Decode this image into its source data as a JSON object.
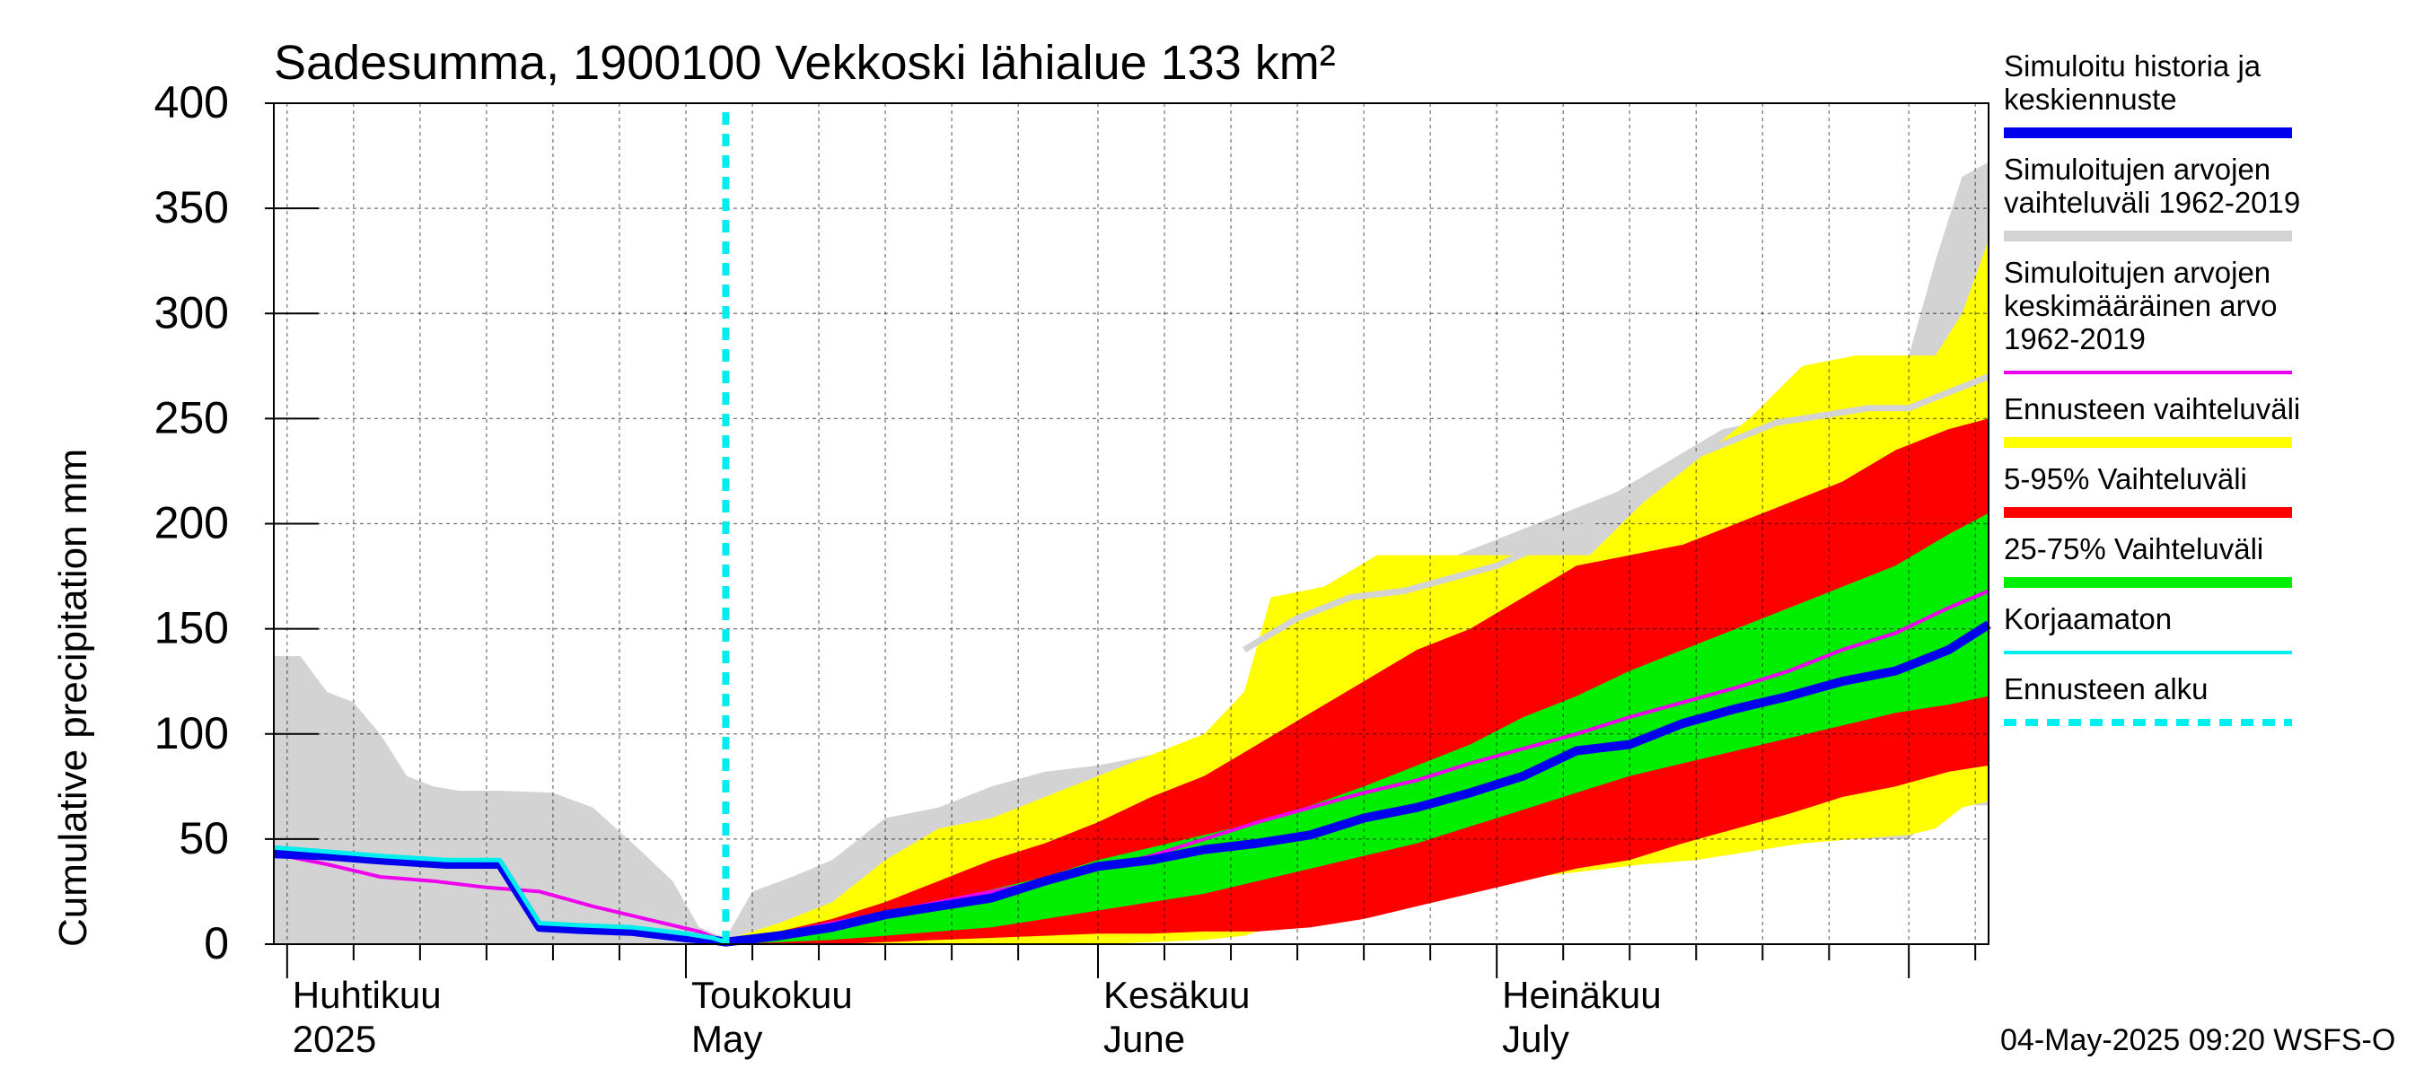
{
  "chart_data": {
    "type": "area",
    "title": "Sadesumma, 1900100 Vekkoski lähialue 133 km²",
    "ylabel": "Cumulative precipitation   mm",
    "ylim": [
      0,
      400
    ],
    "yticks": [
      0,
      50,
      100,
      150,
      200,
      250,
      300,
      350,
      400
    ],
    "ytick_labels": [
      "0",
      "50",
      "100",
      "150",
      "200",
      "250",
      "300",
      "350",
      "400"
    ],
    "xlim": [
      "2025-03-31",
      "2025-08-07"
    ],
    "grid": true,
    "legend_position": "right",
    "forecast_start": "2025-05-04",
    "month_labels": [
      {
        "date": "2025-04-01",
        "fi": "Huhtikuu",
        "en": "2025"
      },
      {
        "date": "2025-05-01",
        "fi": "Toukokuu",
        "en": "May"
      },
      {
        "date": "2025-06-01",
        "fi": "Kesäkuu",
        "en": "June"
      },
      {
        "date": "2025-07-01",
        "fi": "Heinäkuu",
        "en": "July"
      }
    ],
    "month_ticks": [
      "2025-04-01",
      "2025-05-01",
      "2025-06-01",
      "2025-07-01",
      "2025-08-01"
    ],
    "week_ticks": [
      "2025-04-06",
      "2025-04-11",
      "2025-04-16",
      "2025-04-21",
      "2025-04-26",
      "2025-05-06",
      "2025-05-11",
      "2025-05-16",
      "2025-05-21",
      "2025-05-26",
      "2025-06-06",
      "2025-06-11",
      "2025-06-16",
      "2025-06-21",
      "2025-06-26",
      "2025-07-06",
      "2025-07-11",
      "2025-07-16",
      "2025-07-21",
      "2025-07-26",
      "2025-08-06"
    ],
    "series": [
      {
        "name": "Simuloitujen arvojen vaihteluväli 1962-2019",
        "kind": "band",
        "color": "#d3d3d3",
        "x": [
          "2025-03-31",
          "2025-04-02",
          "2025-04-04",
          "2025-04-06",
          "2025-04-08",
          "2025-04-10",
          "2025-04-12",
          "2025-04-14",
          "2025-04-17",
          "2025-04-21",
          "2025-04-24",
          "2025-04-27",
          "2025-04-30",
          "2025-05-02",
          "2025-05-04",
          "2025-05-06",
          "2025-05-09",
          "2025-05-12",
          "2025-05-16",
          "2025-05-20",
          "2025-05-24",
          "2025-05-28",
          "2025-06-01",
          "2025-06-05",
          "2025-06-09",
          "2025-06-12",
          "2025-06-14",
          "2025-06-16",
          "2025-06-20",
          "2025-06-24",
          "2025-06-28",
          "2025-07-02",
          "2025-07-06",
          "2025-07-10",
          "2025-07-14",
          "2025-07-18",
          "2025-07-22",
          "2025-07-26",
          "2025-07-29",
          "2025-08-01",
          "2025-08-03",
          "2025-08-05",
          "2025-08-07"
        ],
        "upper": [
          137,
          137,
          120,
          115,
          100,
          80,
          75,
          73,
          73,
          72,
          65,
          48,
          30,
          8,
          3,
          25,
          32,
          40,
          60,
          65,
          75,
          82,
          85,
          90,
          95,
          100,
          125,
          130,
          160,
          170,
          185,
          195,
          205,
          215,
          230,
          245,
          250,
          255,
          262,
          280,
          325,
          365,
          372
        ],
        "lower": [
          0,
          0,
          0,
          0,
          0,
          0,
          0,
          0,
          0,
          0,
          0,
          0,
          0,
          0,
          0,
          0,
          0,
          0,
          0,
          0,
          0,
          2,
          4,
          4,
          4,
          8,
          10,
          14,
          20,
          25,
          30,
          35,
          38,
          40,
          44,
          46,
          48,
          50,
          50,
          50,
          62,
          66,
          66
        ]
      },
      {
        "name": "Ennusteen vaihteluväli",
        "kind": "band",
        "color": "#ffff00",
        "x": [
          "2025-05-04",
          "2025-05-08",
          "2025-05-12",
          "2025-05-16",
          "2025-05-20",
          "2025-05-24",
          "2025-05-28",
          "2025-06-01",
          "2025-06-05",
          "2025-06-09",
          "2025-06-12",
          "2025-06-14",
          "2025-06-18",
          "2025-06-22",
          "2025-06-26",
          "2025-06-30",
          "2025-07-04",
          "2025-07-08",
          "2025-07-12",
          "2025-07-16",
          "2025-07-20",
          "2025-07-24",
          "2025-07-28",
          "2025-08-01",
          "2025-08-03",
          "2025-08-05",
          "2025-08-07"
        ],
        "upper": [
          2,
          10,
          20,
          40,
          55,
          60,
          70,
          80,
          90,
          100,
          120,
          165,
          170,
          185,
          185,
          185,
          185,
          185,
          210,
          230,
          250,
          275,
          280,
          280,
          280,
          300,
          335
        ],
        "lower": [
          0,
          0,
          0,
          0,
          0,
          0,
          0,
          0,
          1,
          2,
          4,
          8,
          14,
          20,
          25,
          28,
          32,
          35,
          38,
          40,
          44,
          48,
          50,
          52,
          55,
          65,
          68
        ]
      },
      {
        "name": "5-95% Vaihteluväli",
        "kind": "band",
        "color": "#ff0000",
        "x": [
          "2025-05-04",
          "2025-05-08",
          "2025-05-12",
          "2025-05-16",
          "2025-05-20",
          "2025-05-24",
          "2025-05-28",
          "2025-06-01",
          "2025-06-05",
          "2025-06-09",
          "2025-06-13",
          "2025-06-17",
          "2025-06-21",
          "2025-06-25",
          "2025-06-29",
          "2025-07-03",
          "2025-07-07",
          "2025-07-11",
          "2025-07-15",
          "2025-07-19",
          "2025-07-23",
          "2025-07-27",
          "2025-07-31",
          "2025-08-04",
          "2025-08-07"
        ],
        "upper": [
          1,
          6,
          12,
          20,
          30,
          40,
          48,
          58,
          70,
          80,
          95,
          110,
          125,
          140,
          150,
          165,
          180,
          185,
          190,
          200,
          210,
          220,
          235,
          245,
          250
        ],
        "lower": [
          0,
          0,
          0,
          1,
          2,
          3,
          4,
          5,
          5,
          6,
          6,
          8,
          12,
          18,
          24,
          30,
          36,
          40,
          48,
          55,
          62,
          70,
          75,
          82,
          85
        ]
      },
      {
        "name": "25-75% Vaihteluväli",
        "kind": "band",
        "color": "#00ee00",
        "x": [
          "2025-05-04",
          "2025-05-08",
          "2025-05-12",
          "2025-05-16",
          "2025-05-20",
          "2025-05-24",
          "2025-05-28",
          "2025-06-01",
          "2025-06-05",
          "2025-06-09",
          "2025-06-13",
          "2025-06-17",
          "2025-06-21",
          "2025-06-25",
          "2025-06-29",
          "2025-07-03",
          "2025-07-07",
          "2025-07-11",
          "2025-07-15",
          "2025-07-19",
          "2025-07-23",
          "2025-07-27",
          "2025-07-31",
          "2025-08-04",
          "2025-08-07"
        ],
        "upper": [
          1,
          4,
          8,
          13,
          20,
          26,
          32,
          40,
          46,
          52,
          58,
          66,
          75,
          85,
          95,
          108,
          118,
          130,
          140,
          150,
          160,
          170,
          180,
          195,
          205
        ],
        "lower": [
          0,
          1,
          2,
          4,
          6,
          8,
          12,
          16,
          20,
          24,
          30,
          36,
          42,
          48,
          56,
          64,
          72,
          80,
          86,
          92,
          98,
          104,
          110,
          114,
          118
        ]
      },
      {
        "name": "Simuloitujen arvojen keskimääräinen arvo 1962-2019",
        "kind": "line",
        "color": "#ee00ee",
        "x": [
          "2025-03-31",
          "2025-04-04",
          "2025-04-08",
          "2025-04-12",
          "2025-04-16",
          "2025-04-20",
          "2025-04-24",
          "2025-04-28",
          "2025-05-02",
          "2025-05-04",
          "2025-05-08",
          "2025-05-12",
          "2025-05-16",
          "2025-05-20",
          "2025-05-24",
          "2025-05-28",
          "2025-06-01",
          "2025-06-05",
          "2025-06-09",
          "2025-06-13",
          "2025-06-17",
          "2025-06-21",
          "2025-06-25",
          "2025-06-29",
          "2025-07-03",
          "2025-07-07",
          "2025-07-11",
          "2025-07-15",
          "2025-07-19",
          "2025-07-23",
          "2025-07-27",
          "2025-07-31",
          "2025-08-04",
          "2025-08-07"
        ],
        "y": [
          43,
          38,
          32,
          30,
          27,
          25,
          18,
          12,
          6,
          1,
          5,
          10,
          15,
          20,
          25,
          30,
          36,
          42,
          50,
          58,
          65,
          72,
          78,
          86,
          93,
          100,
          108,
          115,
          122,
          130,
          140,
          148,
          160,
          168
        ]
      },
      {
        "name": "Simuloitu historia ja keskiennuste",
        "kind": "line",
        "color": "#0000ee",
        "x": [
          "2025-03-31",
          "2025-04-04",
          "2025-04-08",
          "2025-04-13",
          "2025-04-17",
          "2025-04-20",
          "2025-04-23",
          "2025-04-27",
          "2025-05-01",
          "2025-05-03",
          "2025-05-04",
          "2025-05-08",
          "2025-05-12",
          "2025-05-16",
          "2025-05-20",
          "2025-05-24",
          "2025-05-28",
          "2025-06-01",
          "2025-06-05",
          "2025-06-09",
          "2025-06-13",
          "2025-06-17",
          "2025-06-21",
          "2025-06-25",
          "2025-06-29",
          "2025-07-03",
          "2025-07-07",
          "2025-07-11",
          "2025-07-15",
          "2025-07-19",
          "2025-07-23",
          "2025-07-27",
          "2025-07-31",
          "2025-08-04",
          "2025-08-07"
        ],
        "y": [
          43,
          42,
          40,
          38,
          38,
          8,
          7,
          6,
          3,
          2,
          1,
          4,
          8,
          14,
          18,
          22,
          30,
          37,
          40,
          45,
          48,
          52,
          60,
          65,
          72,
          80,
          92,
          95,
          105,
          112,
          118,
          125,
          130,
          140,
          152
        ]
      },
      {
        "name": "Korjaamaton",
        "kind": "line",
        "color": "#00eeee",
        "x": [
          "2025-03-31",
          "2025-04-04",
          "2025-04-08",
          "2025-04-13",
          "2025-04-17",
          "2025-04-20",
          "2025-04-23",
          "2025-04-27",
          "2025-05-01",
          "2025-05-03",
          "2025-05-04"
        ],
        "y": [
          46,
          44,
          42,
          40,
          40,
          10,
          9,
          8,
          5,
          3,
          1
        ]
      },
      {
        "name": "",
        "kind": "line",
        "color": "#d3d3d3",
        "x": [
          "2025-06-12",
          "2025-06-16",
          "2025-06-20",
          "2025-06-24",
          "2025-07-01",
          "2025-07-08",
          "2025-07-15",
          "2025-07-22",
          "2025-07-29",
          "2025-08-01",
          "2025-08-03",
          "2025-08-05",
          "2025-08-07"
        ],
        "y": [
          140,
          155,
          165,
          168,
          180,
          200,
          230,
          248,
          255,
          255,
          260,
          265,
          270
        ]
      }
    ],
    "legend": [
      {
        "text_lines": [
          "Simuloitu historia ja",
          "keskiennuste"
        ],
        "color": "#0000ee",
        "style": "line-thick"
      },
      {
        "text_lines": [
          "Simuloitujen arvojen",
          "vaihteluväli 1962-2019"
        ],
        "color": "#d3d3d3",
        "style": "line-thick"
      },
      {
        "text_lines": [
          "Simuloitujen arvojen",
          "keskimääräinen arvo",
          "   1962-2019"
        ],
        "color": "#ee00ee",
        "style": "line-thin"
      },
      {
        "text_lines": [
          "Ennusteen vaihteluväli"
        ],
        "color": "#ffff00",
        "style": "line-thick"
      },
      {
        "text_lines": [
          "5-95% Vaihteluväli"
        ],
        "color": "#ff0000",
        "style": "line-thick"
      },
      {
        "text_lines": [
          "25-75% Vaihteluväli"
        ],
        "color": "#00ee00",
        "style": "line-thick"
      },
      {
        "text_lines": [
          "Korjaamaton"
        ],
        "color": "#00eeee",
        "style": "line-thin"
      },
      {
        "text_lines": [
          "Ennusteen alku"
        ],
        "color": "#00eeee",
        "style": "dashed"
      }
    ],
    "footer": "04-May-2025 09:20 WSFS-O"
  }
}
